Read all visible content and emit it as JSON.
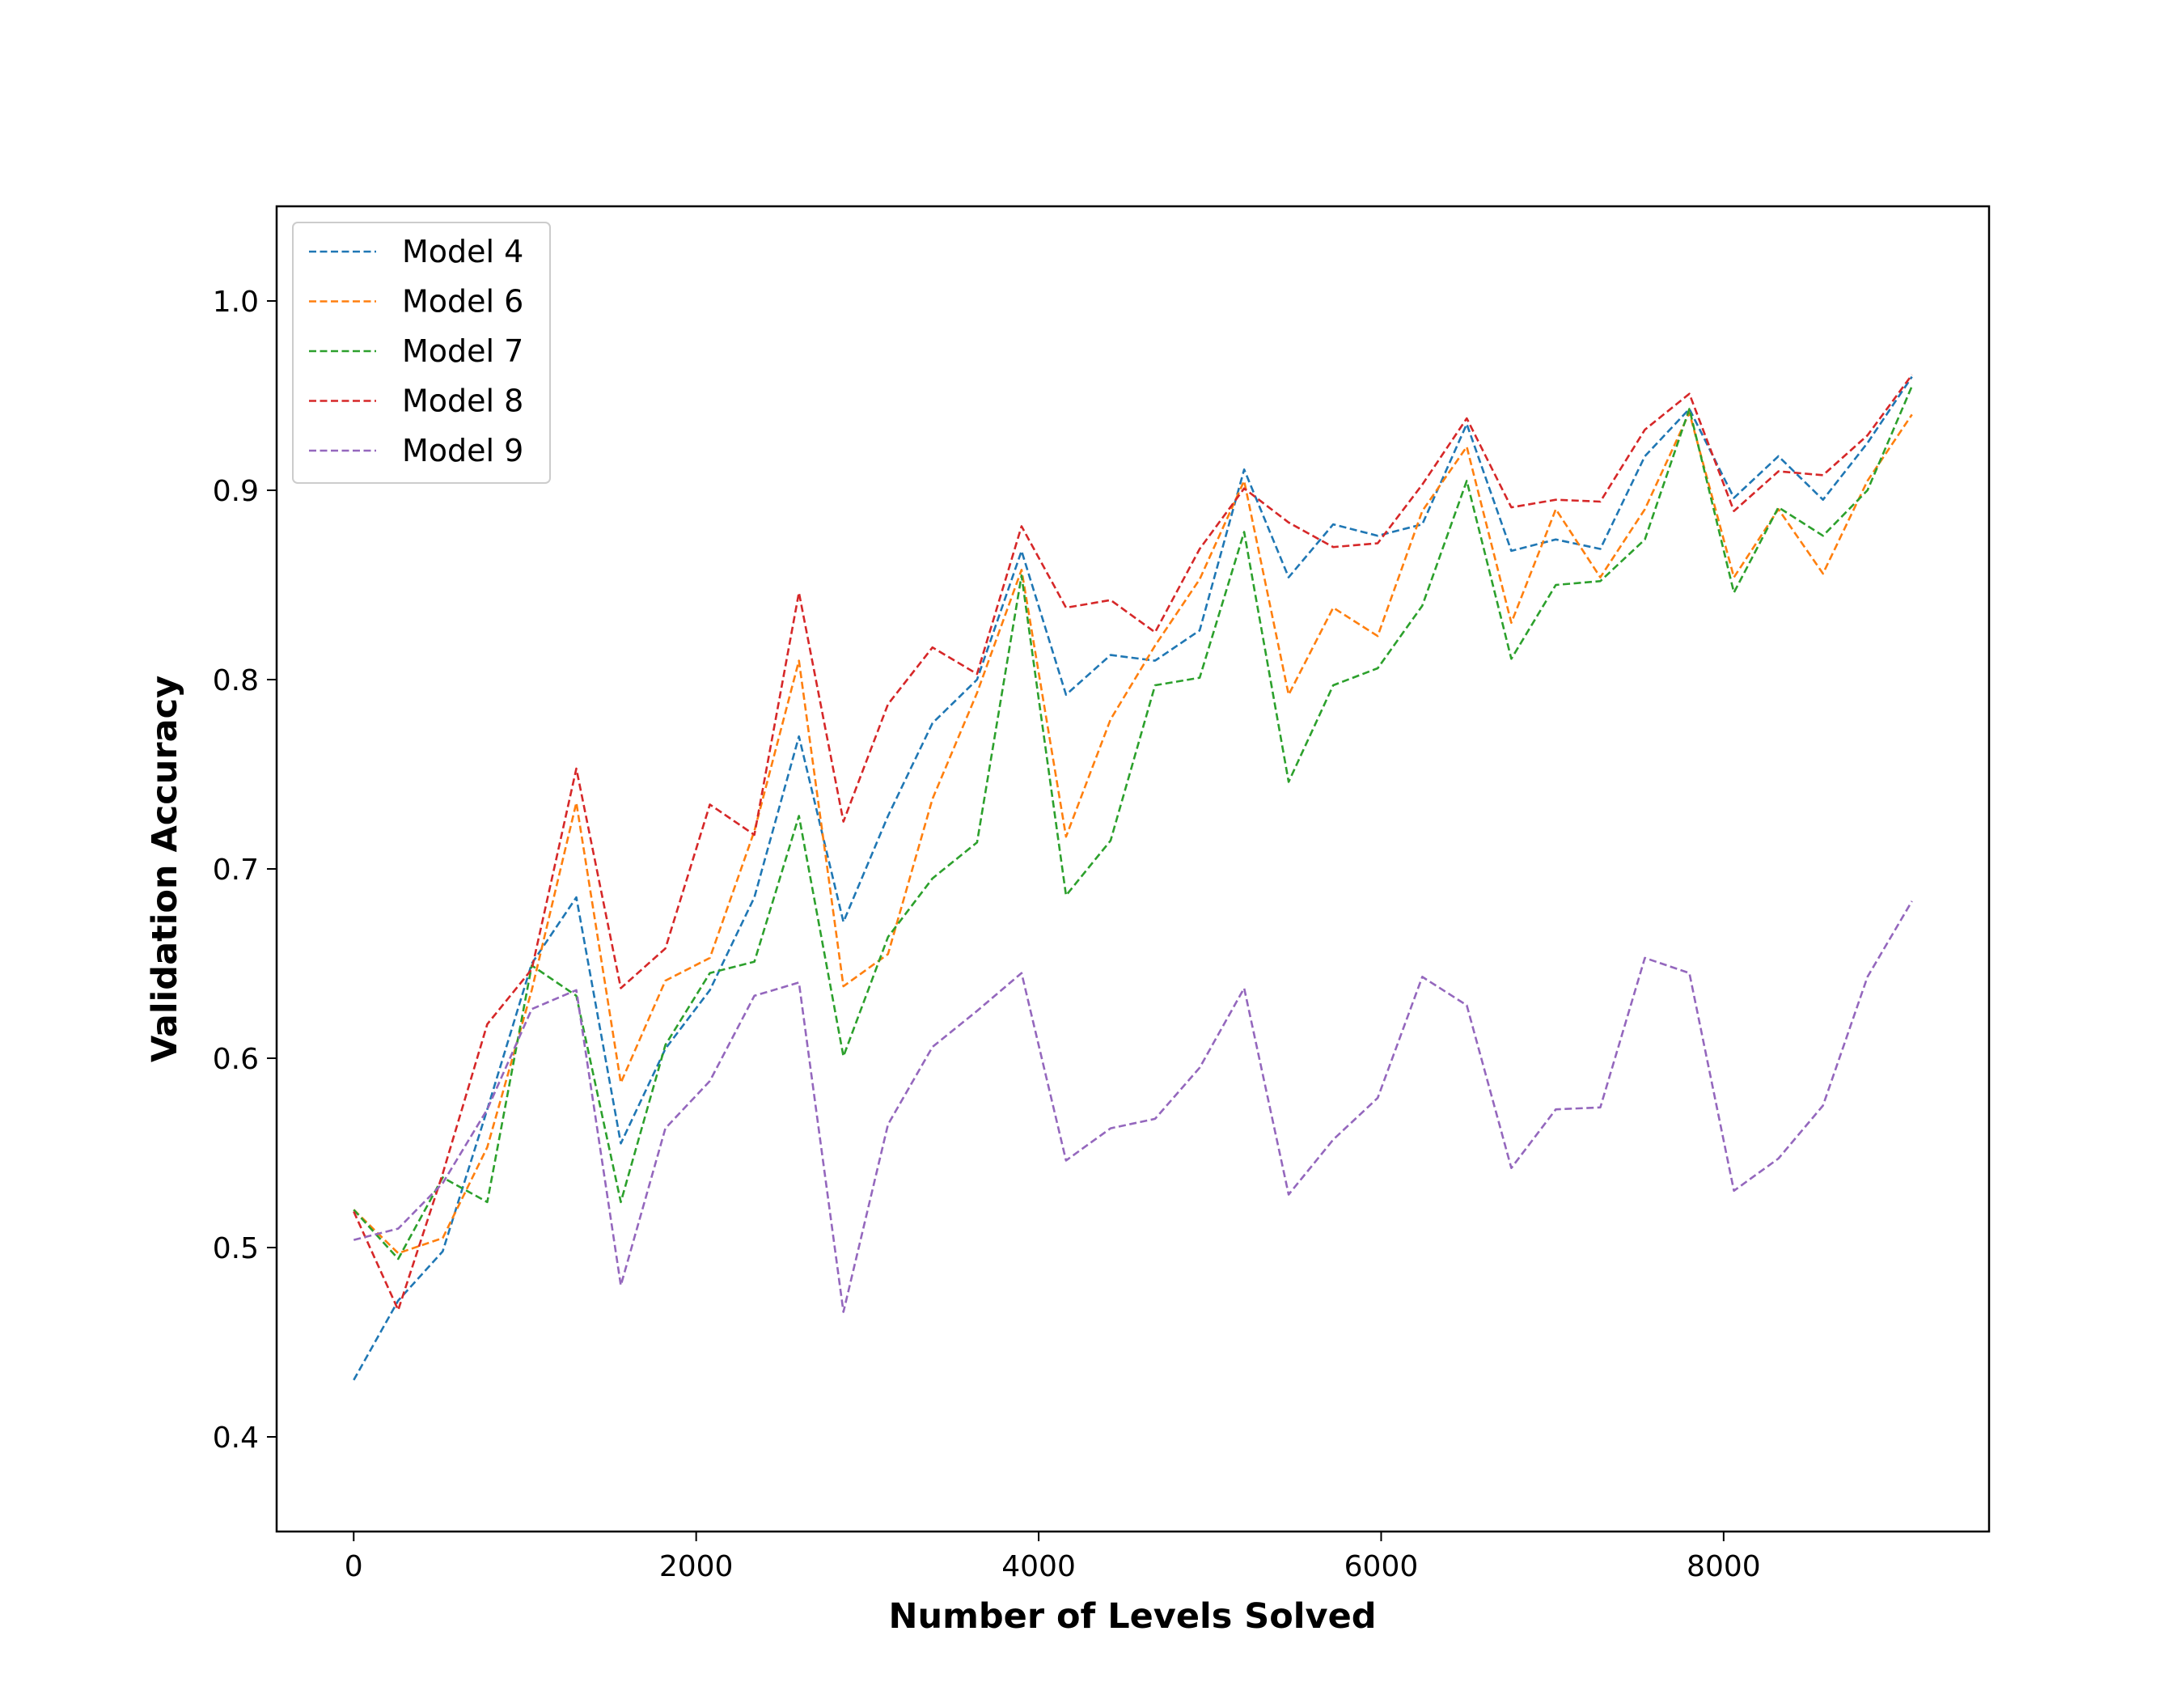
{
  "chart_data": {
    "type": "line",
    "xlabel": "Number of Levels Solved",
    "ylabel": "Validation Accuracy",
    "xlim": [
      -450,
      9550
    ],
    "ylim": [
      0.35,
      1.05
    ],
    "xticks": [
      0,
      2000,
      4000,
      6000,
      8000
    ],
    "xtick_labels": [
      "0",
      "2000",
      "4000",
      "6000",
      "8000"
    ],
    "yticks": [
      0.4,
      0.5,
      0.6,
      0.7,
      0.8,
      0.9,
      1.0
    ],
    "ytick_labels": [
      "0.4",
      "0.5",
      "0.6",
      "0.7",
      "0.8",
      "0.9",
      "1.0"
    ],
    "grid": false,
    "line_style": "dashed",
    "legend_position": "upper-left",
    "x": [
      0,
      260,
      520,
      780,
      1040,
      1300,
      1560,
      1820,
      2080,
      2340,
      2600,
      2860,
      3120,
      3380,
      3640,
      3900,
      4160,
      4420,
      4680,
      4940,
      5200,
      5460,
      5720,
      5980,
      6240,
      6500,
      6760,
      7020,
      7280,
      7540,
      7800,
      8060,
      8320,
      8580,
      8840,
      9100
    ],
    "series": [
      {
        "name": "Model 4",
        "color": "#1f77b4",
        "values": [
          0.43,
          0.472,
          0.498,
          0.573,
          0.65,
          0.685,
          0.555,
          0.605,
          0.636,
          0.685,
          0.77,
          0.672,
          0.728,
          0.777,
          0.8,
          0.868,
          0.792,
          0.813,
          0.81,
          0.826,
          0.911,
          0.854,
          0.882,
          0.876,
          0.882,
          0.935,
          0.868,
          0.874,
          0.869,
          0.918,
          0.943,
          0.896,
          0.918,
          0.895,
          0.925,
          0.96
        ]
      },
      {
        "name": "Model 6",
        "color": "#ff7f0e",
        "values": [
          0.52,
          0.497,
          0.505,
          0.553,
          0.636,
          0.735,
          0.587,
          0.641,
          0.653,
          0.72,
          0.81,
          0.638,
          0.655,
          0.737,
          0.793,
          0.858,
          0.717,
          0.779,
          0.818,
          0.853,
          0.905,
          0.792,
          0.838,
          0.823,
          0.889,
          0.923,
          0.83,
          0.89,
          0.854,
          0.89,
          0.941,
          0.854,
          0.89,
          0.856,
          0.905,
          0.94
        ]
      },
      {
        "name": "Model 7",
        "color": "#2ca02c",
        "values": [
          0.52,
          0.494,
          0.537,
          0.524,
          0.649,
          0.633,
          0.524,
          0.607,
          0.645,
          0.651,
          0.728,
          0.601,
          0.664,
          0.695,
          0.714,
          0.855,
          0.686,
          0.715,
          0.797,
          0.801,
          0.878,
          0.746,
          0.797,
          0.806,
          0.839,
          0.905,
          0.811,
          0.85,
          0.852,
          0.874,
          0.943,
          0.846,
          0.891,
          0.876,
          0.9,
          0.955
        ]
      },
      {
        "name": "Model 8",
        "color": "#d62728",
        "values": [
          0.519,
          0.467,
          0.539,
          0.618,
          0.647,
          0.753,
          0.637,
          0.658,
          0.734,
          0.718,
          0.846,
          0.725,
          0.787,
          0.817,
          0.803,
          0.881,
          0.838,
          0.842,
          0.825,
          0.869,
          0.901,
          0.883,
          0.87,
          0.872,
          0.903,
          0.938,
          0.891,
          0.895,
          0.894,
          0.932,
          0.951,
          0.889,
          0.91,
          0.908,
          0.929,
          0.961
        ]
      },
      {
        "name": "Model 9",
        "color": "#9467bd",
        "values": [
          0.504,
          0.51,
          0.534,
          0.573,
          0.626,
          0.636,
          0.48,
          0.563,
          0.588,
          0.633,
          0.64,
          0.466,
          0.565,
          0.606,
          0.625,
          0.645,
          0.546,
          0.563,
          0.568,
          0.595,
          0.637,
          0.528,
          0.557,
          0.579,
          0.643,
          0.628,
          0.542,
          0.573,
          0.574,
          0.653,
          0.645,
          0.53,
          0.547,
          0.575,
          0.643,
          0.683
        ]
      }
    ]
  }
}
